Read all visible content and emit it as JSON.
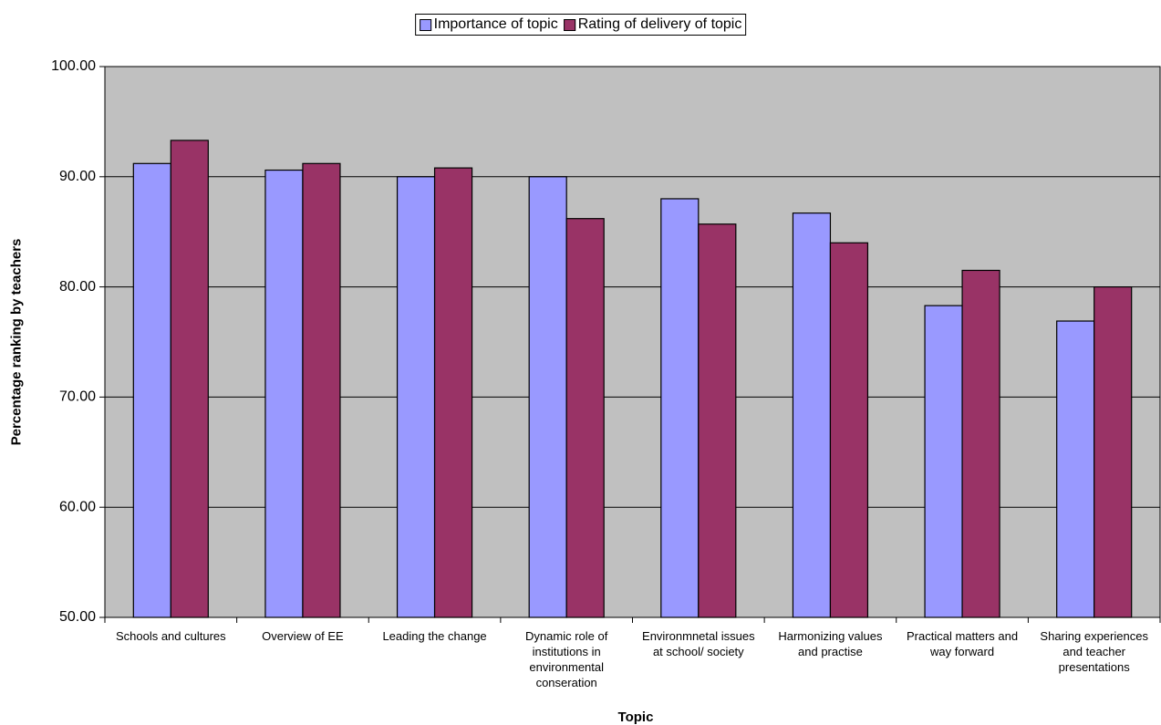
{
  "chart_data": {
    "type": "bar",
    "xlabel": "Topic",
    "ylabel": "Percentage ranking by teachers",
    "categories": [
      "Schools and cultures",
      "Overview of EE",
      "Leading the change",
      "Dynamic role of institutions in environmental conseration",
      "Environmnetal issues at school/ society",
      "Harmonizing values and practise",
      "Practical matters and way forward",
      "Sharing experiences and teacher presentations"
    ],
    "series": [
      {
        "name": "Importance of topic",
        "color": "#9999ff",
        "values": [
          91.2,
          90.6,
          90.0,
          90.0,
          88.0,
          86.7,
          78.3,
          76.9
        ]
      },
      {
        "name": "Rating of delivery of topic",
        "color": "#993366",
        "values": [
          93.3,
          91.2,
          90.8,
          86.2,
          85.7,
          84.0,
          81.5,
          80.0
        ]
      }
    ],
    "ylim": [
      50,
      100
    ],
    "yticks": [
      {
        "value": 50,
        "label": "50.00"
      },
      {
        "value": 60,
        "label": "60.00"
      },
      {
        "value": 70,
        "label": "70.00"
      },
      {
        "value": 80,
        "label": "80.00"
      },
      {
        "value": 90,
        "label": "90.00"
      },
      {
        "value": 100,
        "label": "100.00"
      }
    ],
    "grid": true,
    "background": "#c0c0c0",
    "legend": "top"
  }
}
